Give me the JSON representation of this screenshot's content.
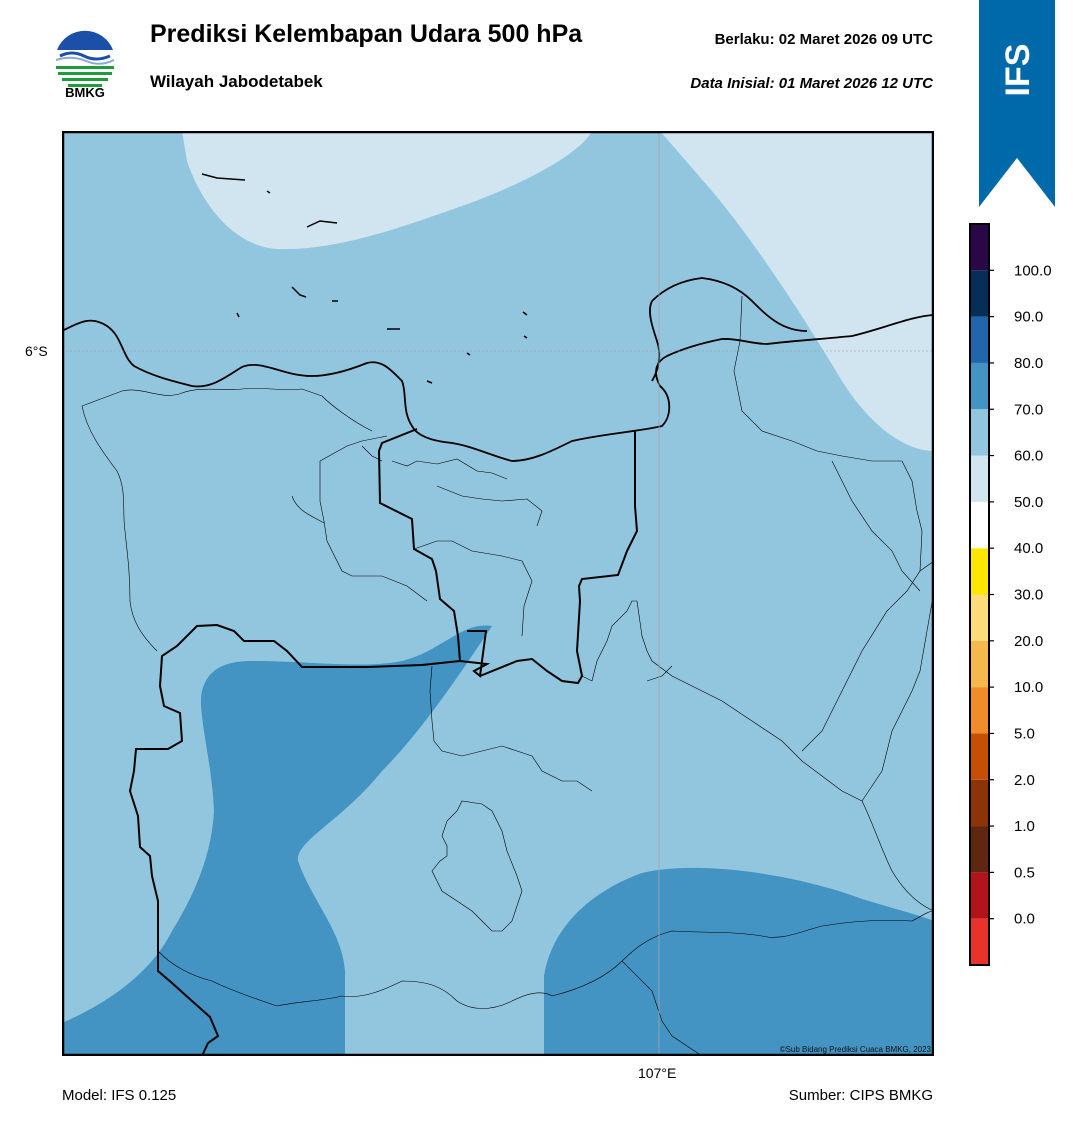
{
  "header": {
    "logo_text": "BMKG",
    "title": "Prediksi Kelembapan Udara 500 hPa",
    "subtitle": "Wilayah Jabodetabek",
    "valid_line": "Berlaku:  02 Maret 2026 09 UTC",
    "init_line": "Data Inisial:  01 Maret 2026 12 UTC"
  },
  "badge": {
    "text": "IFS",
    "color": "#0069AA"
  },
  "map": {
    "lat_label": "6°S",
    "lon_label": "107°E",
    "copyright": "©Sub Bidang Prediksi Cuaca BMKG, 2023",
    "field_colors": {
      "light": "#d1e5f0",
      "medium": "#92c5de",
      "dark": "#4393c3"
    }
  },
  "colorbar": {
    "labels": [
      "0.0",
      "0.5",
      "1.0",
      "2.0",
      "5.0",
      "10.0",
      "20.0",
      "30.0",
      "40.0",
      "50.0",
      "60.0",
      "70.0",
      "80.0",
      "90.0",
      "100.0"
    ],
    "colors": [
      "#e8322a",
      "#b3141b",
      "#5f2710",
      "#8c3407",
      "#c44f05",
      "#f08c2a",
      "#f5b84a",
      "#fbdb7a",
      "#ffe600",
      "#ffffff",
      "#d1e5f0",
      "#92c5de",
      "#4393c3",
      "#2166ac",
      "#072e56",
      "#2a0847"
    ]
  },
  "footer": {
    "model": "Model: IFS 0.125",
    "source": "Sumber: CIPS BMKG"
  }
}
